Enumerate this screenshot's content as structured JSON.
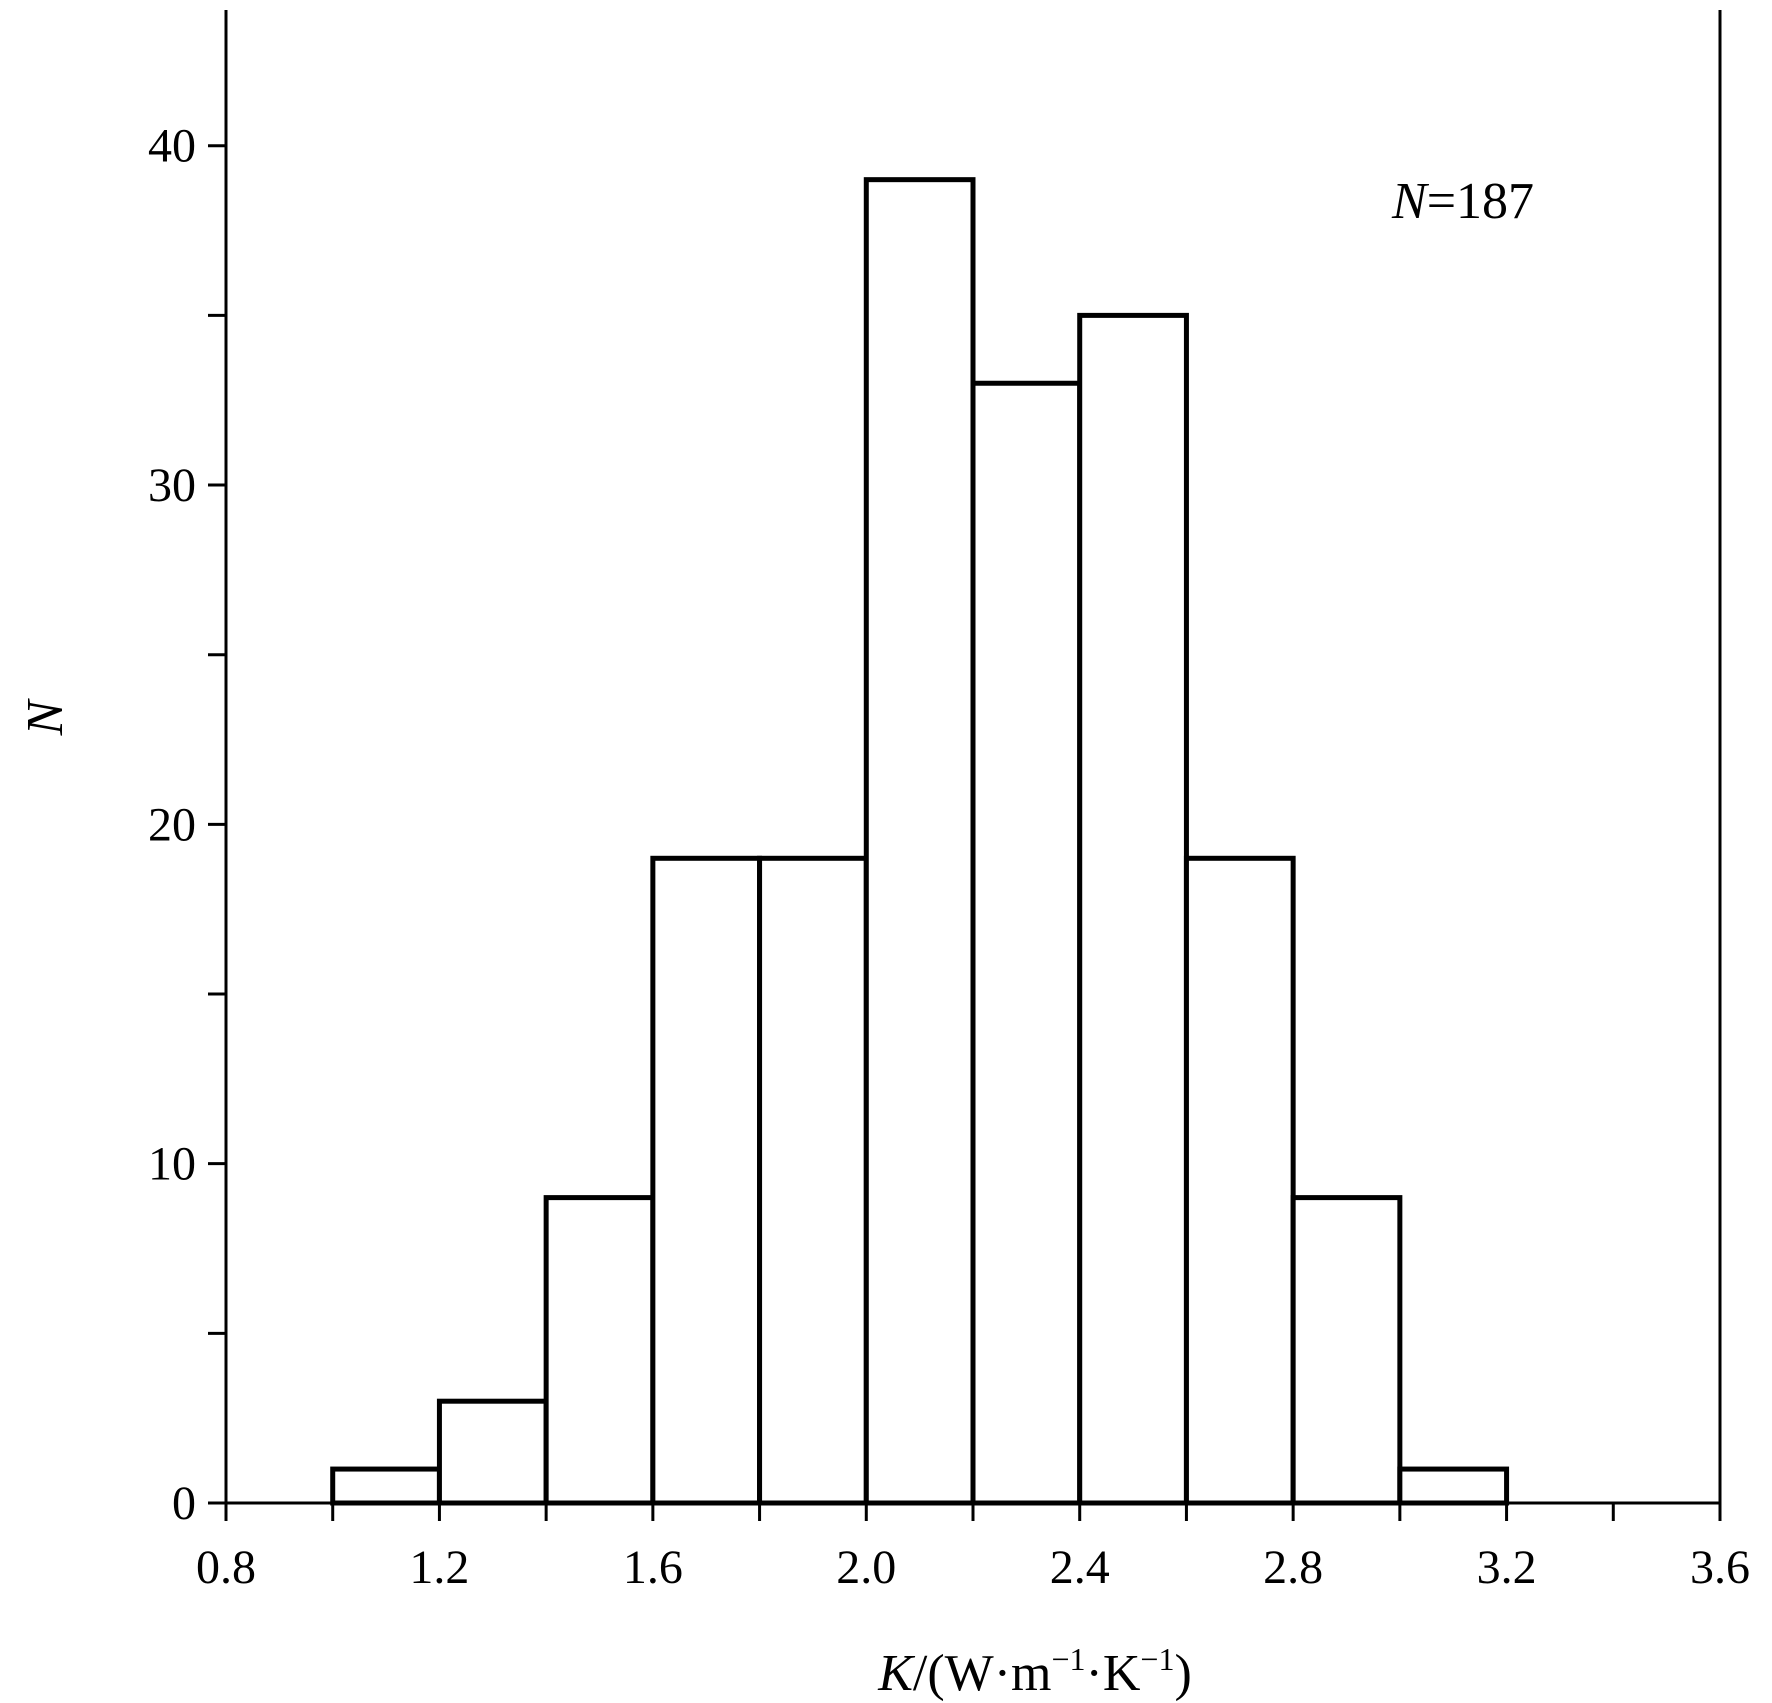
{
  "chart_data": {
    "type": "bar",
    "subtype": "histogram",
    "bin_edges": [
      1.0,
      1.2,
      1.4,
      1.6,
      1.8,
      2.0,
      2.2,
      2.4,
      2.6,
      2.8,
      3.0,
      3.2
    ],
    "counts": [
      1,
      3,
      9,
      19,
      19,
      39,
      33,
      35,
      19,
      9,
      1
    ],
    "xlim": [
      0.8,
      3.6
    ],
    "ylim": [
      0,
      44
    ],
    "x_ticks": [
      0.8,
      1.0,
      1.2,
      1.4,
      1.6,
      1.8,
      2.0,
      2.2,
      2.4,
      2.6,
      2.8,
      3.0,
      3.2,
      3.4,
      3.6
    ],
    "x_tick_labels": [
      {
        "value": 0.8,
        "text": "0.8"
      },
      {
        "value": 1.2,
        "text": "1.2"
      },
      {
        "value": 1.6,
        "text": "1.6"
      },
      {
        "value": 2.0,
        "text": "2.0"
      },
      {
        "value": 2.4,
        "text": "2.4"
      },
      {
        "value": 2.8,
        "text": "2.8"
      },
      {
        "value": 3.2,
        "text": "3.2"
      },
      {
        "value": 3.6,
        "text": "3.6"
      }
    ],
    "y_ticks": [
      0,
      5,
      10,
      15,
      20,
      25,
      30,
      35,
      40
    ],
    "y_tick_labels": [
      {
        "value": 0,
        "text": "0"
      },
      {
        "value": 10,
        "text": "10"
      },
      {
        "value": 20,
        "text": "20"
      },
      {
        "value": 30,
        "text": "30"
      },
      {
        "value": 40,
        "text": "40"
      }
    ],
    "xlabel": {
      "var": "K",
      "pre": "/(W·m",
      "sup1": "−1",
      "mid": "·K",
      "sup2": "−1",
      "post": ")"
    },
    "ylabel": "N",
    "annotation": {
      "var": "N",
      "rest": "=187"
    },
    "grid": false,
    "colors": {
      "bar_fill": "#ffffff",
      "bar_stroke": "#000000",
      "axis": "#000000"
    }
  }
}
